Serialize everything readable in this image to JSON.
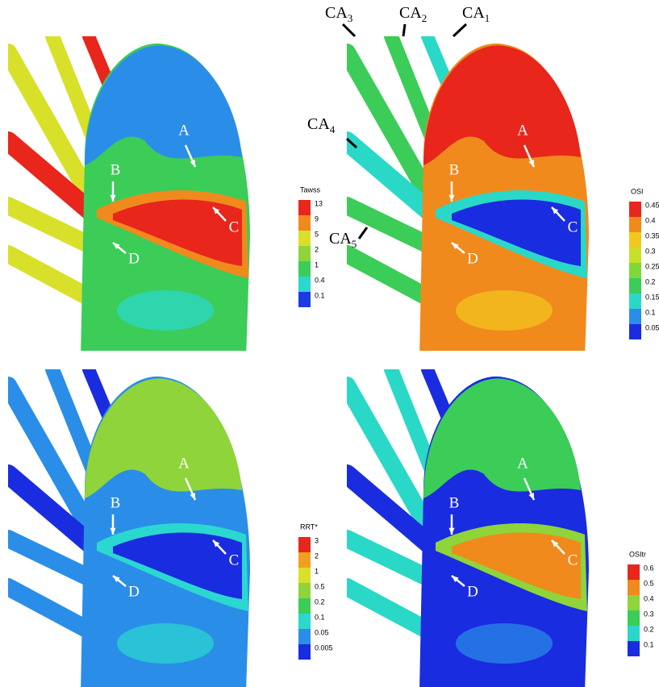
{
  "panels": [
    {
      "legend": {
        "title": "Tawss",
        "labels": [
          "13",
          "9",
          "5",
          "2",
          "1",
          "0.4",
          "0.1"
        ],
        "colors": [
          "#e8261c",
          "#f08a1c",
          "#d8e02a",
          "#8fd43a",
          "#3ccc58",
          "#2ad8d0",
          "#1a3ce0"
        ]
      },
      "annotations": [
        "A",
        "B",
        "C",
        "D"
      ]
    },
    {
      "legend": {
        "title": "OSI",
        "labels": [
          "0.45",
          "0.4",
          "0.35",
          "0.3",
          "0.25",
          "0.2",
          "0.15",
          "0.1",
          "0.05"
        ],
        "colors": [
          "#e8261c",
          "#f08a1c",
          "#f2c81e",
          "#c8e02a",
          "#7fd83a",
          "#3ccc58",
          "#2ad8c8",
          "#2a8ee8",
          "#1a2ce0"
        ]
      },
      "annotations": [
        "A",
        "B",
        "C",
        "D"
      ],
      "vessels": [
        {
          "text": "CA",
          "sub": "3"
        },
        {
          "text": "CA",
          "sub": "2"
        },
        {
          "text": "CA",
          "sub": "1"
        },
        {
          "text": "CA",
          "sub": "4"
        },
        {
          "text": "CA",
          "sub": "5"
        }
      ]
    },
    {
      "legend": {
        "title": "RRT*",
        "labels": [
          "3",
          "2",
          "1",
          "0.5",
          "0.2",
          "0.1",
          "0.05",
          "0.005"
        ],
        "colors": [
          "#e8261c",
          "#f0a020",
          "#d8e02a",
          "#8fd43a",
          "#3ccc58",
          "#2ad8d0",
          "#2a8ee8",
          "#1a2ce0"
        ]
      },
      "annotations": [
        "A",
        "B",
        "C",
        "D"
      ]
    },
    {
      "legend": {
        "title": "OSItr",
        "labels": [
          "0.6",
          "0.5",
          "0.4",
          "0.3",
          "0.2",
          "0.1"
        ],
        "colors": [
          "#e8261c",
          "#f08a1c",
          "#8fd43a",
          "#3ccc58",
          "#2ad8c8",
          "#1a2ce0"
        ]
      },
      "annotations": [
        "A",
        "B",
        "C",
        "D"
      ]
    }
  ]
}
